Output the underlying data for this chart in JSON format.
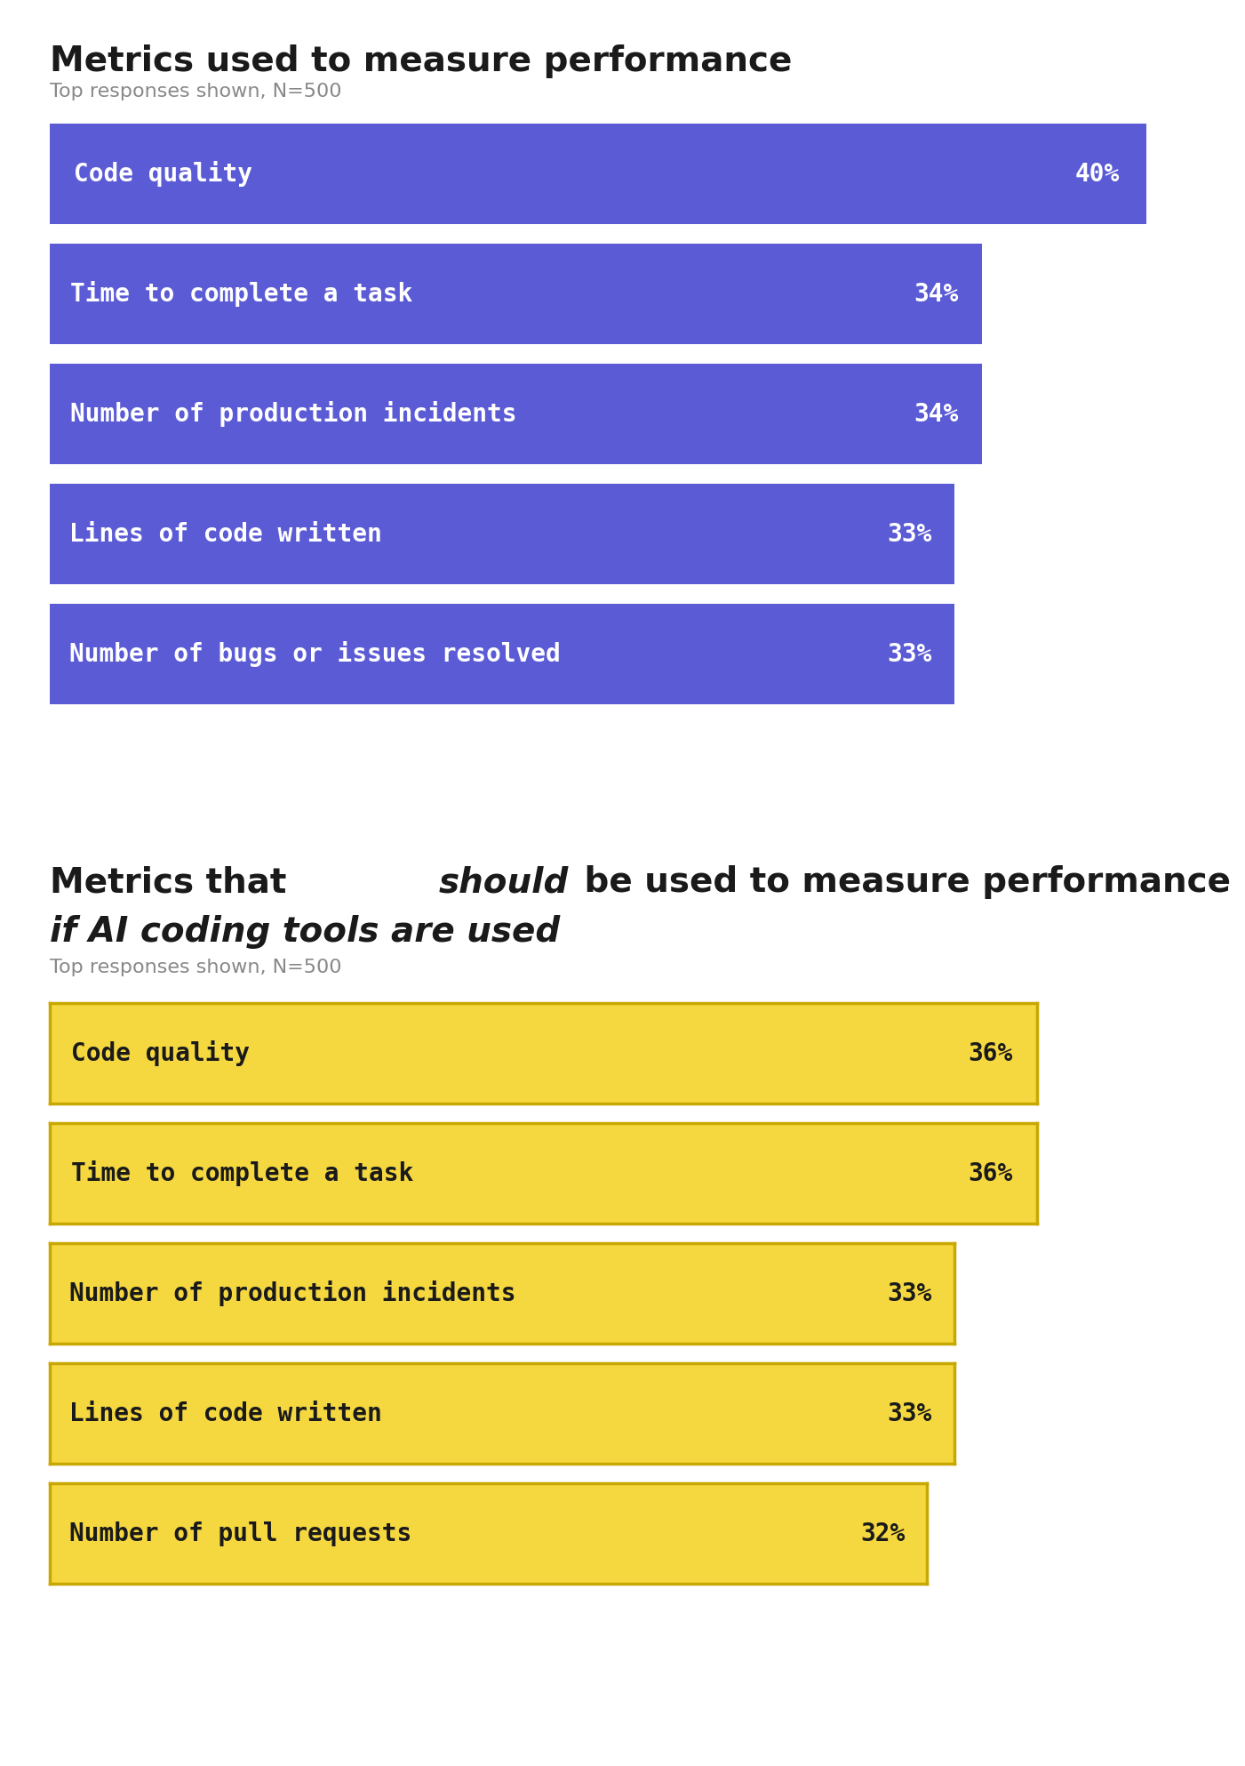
{
  "title1": "Metrics used to measure performance",
  "subtitle1": "Top responses shown, N=500",
  "title2_line2": "if AI coding tools are used",
  "subtitle2": "Top responses shown, N=500",
  "chart1": {
    "categories": [
      "Code quality",
      "Time to complete a task",
      "Number of production incidents",
      "Lines of code written",
      "Number of bugs or issues resolved"
    ],
    "values": [
      40,
      34,
      34,
      33,
      33
    ],
    "bar_color": "#5B5BD6",
    "text_color": "#FFFFFF",
    "value_suffix": "%"
  },
  "chart2": {
    "categories": [
      "Code quality",
      "Time to complete a task",
      "Number of production incidents",
      "Lines of code written",
      "Number of pull requests"
    ],
    "values": [
      36,
      36,
      33,
      33,
      32
    ],
    "bar_color": "#F5D840",
    "bar_border_color": "#C8A800",
    "text_color": "#1a1a1a",
    "value_suffix": "%"
  },
  "background_color": "#FFFFFF",
  "title_fontsize": 28,
  "subtitle_fontsize": 16,
  "bar_label_fontsize": 20,
  "bar_value_fontsize": 20,
  "divider_color": "#BBBBBB",
  "title_color": "#1a1a1a",
  "subtitle_color": "#888888"
}
